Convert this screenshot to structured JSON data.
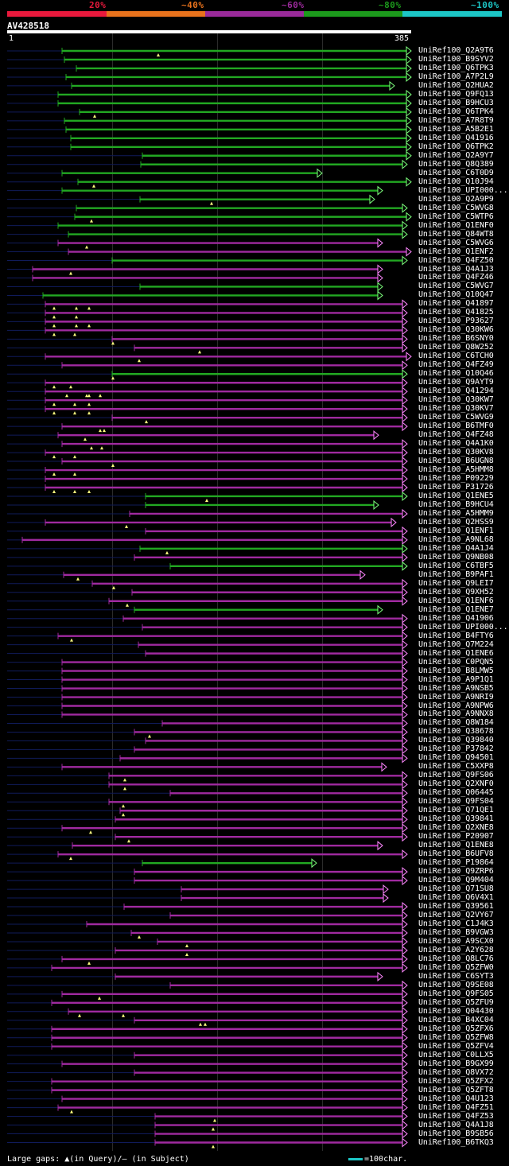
{
  "legend": {
    "labels": [
      "20%",
      "~40%",
      "~60%",
      "~80%",
      "~100%"
    ],
    "colors": [
      "#e8193c",
      "#e8721c",
      "#9a2a9a",
      "#1c9a1c",
      "#1cc6c6"
    ]
  },
  "query": {
    "name": "AV428518",
    "start": "1",
    "end": "385"
  },
  "footer": {
    "text": "Large gaps: ▲(in Query)/— (in Subject)",
    "scale": "=100char."
  },
  "colors": {
    "green": "#22a822",
    "purple": "#a02aa0",
    "navy": "#101b5a",
    "green_arrow": "#7dff7d",
    "purple_arrow": "#ff88ff"
  },
  "hits": [
    {
      "name": "UniRef100_Q2A9T6",
      "c": "g",
      "s": 78,
      "e": 517,
      "m": [
        199
      ]
    },
    {
      "name": "UniRef100_B9SYV2",
      "c": "g",
      "s": 81,
      "e": 517,
      "m": []
    },
    {
      "name": "UniRef100_Q6TPK3",
      "c": "g",
      "s": 96,
      "e": 517,
      "m": []
    },
    {
      "name": "UniRef100_A7P2L9",
      "c": "g",
      "s": 83,
      "e": 517,
      "m": []
    },
    {
      "name": "UniRef100_Q2HUA2",
      "c": "g",
      "s": 90,
      "e": 496,
      "m": []
    },
    {
      "name": "UniRef100_Q9FQ13",
      "c": "g",
      "s": 73,
      "e": 517,
      "m": []
    },
    {
      "name": "UniRef100_B9HCU3",
      "c": "g",
      "s": 73,
      "e": 517,
      "m": []
    },
    {
      "name": "UniRef100_Q6TPK4",
      "c": "g",
      "s": 100,
      "e": 517,
      "m": [
        119
      ]
    },
    {
      "name": "UniRef100_A7R8T9",
      "c": "g",
      "s": 81,
      "e": 517,
      "m": []
    },
    {
      "name": "UniRef100_A5B2E1",
      "c": "g",
      "s": 83,
      "e": 517,
      "m": []
    },
    {
      "name": "UniRef100_Q41916",
      "c": "g",
      "s": 89,
      "e": 517,
      "m": []
    },
    {
      "name": "UniRef100_Q6TPK2",
      "c": "g",
      "s": 89,
      "e": 517,
      "m": []
    },
    {
      "name": "UniRef100_Q2A9Y7",
      "c": "g",
      "s": 179,
      "e": 517,
      "m": []
    },
    {
      "name": "UniRef100_Q8Q389",
      "c": "g",
      "s": 177,
      "e": 512,
      "m": []
    },
    {
      "name": "UniRef100_C6T0D9",
      "c": "g",
      "s": 78,
      "e": 405,
      "m": []
    },
    {
      "name": "UniRef100_Q10J94",
      "c": "g",
      "s": 98,
      "e": 517,
      "m": [
        118
      ]
    },
    {
      "name": "UniRef100_UPI000...",
      "c": "g",
      "s": 78,
      "e": 481,
      "m": []
    },
    {
      "name": "UniRef100_Q2A9P9",
      "c": "g",
      "s": 176,
      "e": 471,
      "m": [
        266
      ]
    },
    {
      "name": "UniRef100_C5WVG8",
      "c": "g",
      "s": 96,
      "e": 512,
      "m": []
    },
    {
      "name": "UniRef100_C5WTP6",
      "c": "g",
      "s": 94,
      "e": 517,
      "m": [
        115
      ]
    },
    {
      "name": "UniRef100_Q1ENF0",
      "c": "g",
      "s": 73,
      "e": 512,
      "m": []
    },
    {
      "name": "UniRef100_Q84WT8",
      "c": "g",
      "s": 86,
      "e": 512,
      "m": []
    },
    {
      "name": "UniRef100_C5WVG6",
      "c": "p",
      "s": 73,
      "e": 481,
      "m": [
        109
      ]
    },
    {
      "name": "UniRef100_Q1ENF2",
      "c": "p",
      "s": 86,
      "e": 517,
      "m": []
    },
    {
      "name": "UniRef100_Q4FZ50",
      "c": "g",
      "s": 141,
      "e": 512,
      "m": []
    },
    {
      "name": "UniRef100_Q4A1J3",
      "c": "p",
      "s": 41,
      "e": 481,
      "m": [
        89
      ]
    },
    {
      "name": "UniRef100_Q4FZ46",
      "c": "p",
      "s": 41,
      "e": 481,
      "m": []
    },
    {
      "name": "UniRef100_C5WVG7",
      "c": "g",
      "s": 176,
      "e": 481,
      "m": []
    },
    {
      "name": "UniRef100_Q10Q47",
      "c": "g",
      "s": 54,
      "e": 481,
      "m": []
    },
    {
      "name": "UniRef100_Q41897",
      "c": "p",
      "s": 57,
      "e": 512,
      "m": [
        68,
        96,
        112
      ]
    },
    {
      "name": "UniRef100_Q41825",
      "c": "p",
      "s": 57,
      "e": 512,
      "m": [
        68,
        96
      ]
    },
    {
      "name": "UniRef100_P93627",
      "c": "p",
      "s": 57,
      "e": 512,
      "m": [
        68,
        96,
        112
      ]
    },
    {
      "name": "UniRef100_Q30KW6",
      "c": "p",
      "s": 57,
      "e": 512,
      "m": [
        68,
        94
      ]
    },
    {
      "name": "UniRef100_B6SNY0",
      "c": "p",
      "s": 141,
      "e": 512,
      "m": [
        142
      ]
    },
    {
      "name": "UniRef100_Q8W252",
      "c": "p",
      "s": 169,
      "e": 512,
      "m": [
        251
      ]
    },
    {
      "name": "UniRef100_C6TCH0",
      "c": "p",
      "s": 57,
      "e": 517,
      "m": [
        175
      ]
    },
    {
      "name": "UniRef100_Q4FZ49",
      "c": "p",
      "s": 78,
      "e": 512,
      "m": []
    },
    {
      "name": "UniRef100_Q10Q46",
      "c": "g",
      "s": 141,
      "e": 512,
      "m": [
        142
      ]
    },
    {
      "name": "UniRef100_Q9AYT9",
      "c": "p",
      "s": 57,
      "e": 512,
      "m": [
        68,
        89
      ]
    },
    {
      "name": "UniRef100_Q41294",
      "c": "p",
      "s": 57,
      "e": 512,
      "m": [
        84,
        109,
        112,
        126
      ]
    },
    {
      "name": "UniRef100_Q30KW7",
      "c": "p",
      "s": 57,
      "e": 512,
      "m": [
        68,
        94,
        112
      ]
    },
    {
      "name": "UniRef100_Q30KV7",
      "c": "p",
      "s": 57,
      "e": 512,
      "m": [
        68,
        94,
        112
      ]
    },
    {
      "name": "UniRef100_C5WVG9",
      "c": "p",
      "s": 141,
      "e": 512,
      "m": [
        184
      ]
    },
    {
      "name": "UniRef100_B6TMF0",
      "c": "p",
      "s": 78,
      "e": 512,
      "m": [
        126,
        131
      ]
    },
    {
      "name": "UniRef100_Q4FZ48",
      "c": "p",
      "s": 73,
      "e": 476,
      "m": [
        107
      ]
    },
    {
      "name": "UniRef100_Q4A1K0",
      "c": "p",
      "s": 78,
      "e": 512,
      "m": [
        115,
        128
      ]
    },
    {
      "name": "UniRef100_Q30KV8",
      "c": "p",
      "s": 57,
      "e": 512,
      "m": [
        68,
        94
      ]
    },
    {
      "name": "UniRef100_B6UGN8",
      "c": "p",
      "s": 78,
      "e": 512,
      "m": [
        142
      ]
    },
    {
      "name": "UniRef100_A5HMM8",
      "c": "p",
      "s": 57,
      "e": 512,
      "m": [
        68,
        94
      ]
    },
    {
      "name": "UniRef100_P09229",
      "c": "p",
      "s": 57,
      "e": 512,
      "m": []
    },
    {
      "name": "UniRef100_P31726",
      "c": "p",
      "s": 57,
      "e": 512,
      "m": [
        68,
        94,
        112
      ]
    },
    {
      "name": "UniRef100_Q1ENE5",
      "c": "g",
      "s": 183,
      "e": 512,
      "m": [
        260
      ]
    },
    {
      "name": "UniRef100_B9HCU4",
      "c": "g",
      "s": 183,
      "e": 476,
      "m": []
    },
    {
      "name": "UniRef100_A5HMM9",
      "c": "p",
      "s": 163,
      "e": 512,
      "m": []
    },
    {
      "name": "UniRef100_Q2HSS9",
      "c": "p",
      "s": 57,
      "e": 498,
      "m": [
        159
      ]
    },
    {
      "name": "UniRef100_Q1ENF1",
      "c": "p",
      "s": 183,
      "e": 512,
      "m": []
    },
    {
      "name": "UniRef100_A9NL68",
      "c": "p",
      "s": 28,
      "e": 512,
      "m": []
    },
    {
      "name": "UniRef100_Q4A1J4",
      "c": "g",
      "s": 176,
      "e": 512,
      "m": [
        210
      ]
    },
    {
      "name": "UniRef100_Q9NB08",
      "c": "p",
      "s": 169,
      "e": 512,
      "m": []
    },
    {
      "name": "UniRef100_C6TBF5",
      "c": "g",
      "s": 214,
      "e": 512,
      "m": []
    },
    {
      "name": "UniRef100_B9PAF1",
      "c": "p",
      "s": 80,
      "e": 459,
      "m": [
        98
      ]
    },
    {
      "name": "UniRef100_Q9LEI7",
      "c": "p",
      "s": 116,
      "e": 512,
      "m": [
        143
      ]
    },
    {
      "name": "UniRef100_Q9XH52",
      "c": "p",
      "s": 166,
      "e": 512,
      "m": []
    },
    {
      "name": "UniRef100_Q1ENF6",
      "c": "p",
      "s": 137,
      "e": 512,
      "m": [
        160
      ]
    },
    {
      "name": "UniRef100_Q1ENE7",
      "c": "g",
      "s": 169,
      "e": 481,
      "m": []
    },
    {
      "name": "UniRef100_Q41906",
      "c": "p",
      "s": 155,
      "e": 512,
      "m": []
    },
    {
      "name": "UniRef100_UPI000...",
      "c": "p",
      "s": 179,
      "e": 512,
      "m": []
    },
    {
      "name": "UniRef100_B4FTY6",
      "c": "p",
      "s": 73,
      "e": 512,
      "m": [
        90
      ]
    },
    {
      "name": "UniRef100_Q7M224",
      "c": "p",
      "s": 174,
      "e": 512,
      "m": []
    },
    {
      "name": "UniRef100_Q1ENE6",
      "c": "p",
      "s": 183,
      "e": 512,
      "m": []
    },
    {
      "name": "UniRef100_C0PQN5",
      "c": "p",
      "s": 78,
      "e": 512,
      "m": []
    },
    {
      "name": "UniRef100_B8LMW5",
      "c": "p",
      "s": 78,
      "e": 512,
      "m": []
    },
    {
      "name": "UniRef100_A9P1Q1",
      "c": "p",
      "s": 78,
      "e": 512,
      "m": []
    },
    {
      "name": "UniRef100_A9NSB5",
      "c": "p",
      "s": 78,
      "e": 512,
      "m": []
    },
    {
      "name": "UniRef100_A9NRI9",
      "c": "p",
      "s": 78,
      "e": 512,
      "m": []
    },
    {
      "name": "UniRef100_A9NPW6",
      "c": "p",
      "s": 78,
      "e": 512,
      "m": []
    },
    {
      "name": "UniRef100_A9NNX8",
      "c": "p",
      "s": 78,
      "e": 512,
      "m": []
    },
    {
      "name": "UniRef100_Q8W184",
      "c": "p",
      "s": 204,
      "e": 512,
      "m": []
    },
    {
      "name": "UniRef100_Q38678",
      "c": "p",
      "s": 169,
      "e": 512,
      "m": [
        188
      ]
    },
    {
      "name": "UniRef100_Q39840",
      "c": "p",
      "s": 183,
      "e": 512,
      "m": []
    },
    {
      "name": "UniRef100_P37842",
      "c": "p",
      "s": 169,
      "e": 512,
      "m": []
    },
    {
      "name": "UniRef100_Q94501",
      "c": "p",
      "s": 151,
      "e": 512,
      "m": []
    },
    {
      "name": "UniRef100_C5XXP8",
      "c": "p",
      "s": 78,
      "e": 486,
      "m": []
    },
    {
      "name": "UniRef100_Q9FS06",
      "c": "p",
      "s": 137,
      "e": 512,
      "m": [
        157
      ]
    },
    {
      "name": "UniRef100_Q2XNF0",
      "c": "p",
      "s": 137,
      "e": 512,
      "m": [
        157
      ]
    },
    {
      "name": "UniRef100_Q06445",
      "c": "p",
      "s": 214,
      "e": 512,
      "m": []
    },
    {
      "name": "UniRef100_Q9FS04",
      "c": "p",
      "s": 137,
      "e": 512,
      "m": [
        155
      ]
    },
    {
      "name": "UniRef100_Q71QE1",
      "c": "p",
      "s": 151,
      "e": 512,
      "m": [
        155
      ]
    },
    {
      "name": "UniRef100_Q39841",
      "c": "p",
      "s": 145,
      "e": 512,
      "m": []
    },
    {
      "name": "UniRef100_Q2XNE8",
      "c": "p",
      "s": 78,
      "e": 512,
      "m": [
        114
      ]
    },
    {
      "name": "UniRef100_P20907",
      "c": "p",
      "s": 145,
      "e": 512,
      "m": [
        162
      ]
    },
    {
      "name": "UniRef100_Q1ENE8",
      "c": "p",
      "s": 91,
      "e": 481,
      "m": []
    },
    {
      "name": "UniRef100_B6UFV8",
      "c": "p",
      "s": 73,
      "e": 512,
      "m": [
        89
      ]
    },
    {
      "name": "UniRef100_P19864",
      "c": "g",
      "s": 179,
      "e": 398,
      "m": []
    },
    {
      "name": "UniRef100_Q9ZRP6",
      "c": "p",
      "s": 169,
      "e": 512,
      "m": []
    },
    {
      "name": "UniRef100_Q9M404",
      "c": "p",
      "s": 169,
      "e": 512,
      "m": []
    },
    {
      "name": "UniRef100_Q71SU8",
      "c": "p",
      "s": 228,
      "e": 488,
      "m": []
    },
    {
      "name": "UniRef100_Q6V4X1",
      "c": "p",
      "s": 228,
      "e": 488,
      "m": []
    },
    {
      "name": "UniRef100_Q39561",
      "c": "p",
      "s": 156,
      "e": 512,
      "m": []
    },
    {
      "name": "UniRef100_Q2VY67",
      "c": "p",
      "s": 214,
      "e": 512,
      "m": []
    },
    {
      "name": "UniRef100_C1J4K3",
      "c": "p",
      "s": 109,
      "e": 512,
      "m": []
    },
    {
      "name": "UniRef100_B9VGW3",
      "c": "p",
      "s": 165,
      "e": 512,
      "m": [
        175
      ]
    },
    {
      "name": "UniRef100_A9SCX0",
      "c": "p",
      "s": 198,
      "e": 512,
      "m": [
        235
      ]
    },
    {
      "name": "UniRef100_A2Y628",
      "c": "p",
      "s": 145,
      "e": 512,
      "m": [
        235
      ]
    },
    {
      "name": "UniRef100_Q8LC76",
      "c": "p",
      "s": 78,
      "e": 512,
      "m": [
        112
      ]
    },
    {
      "name": "UniRef100_Q5ZFW0",
      "c": "p",
      "s": 65,
      "e": 512,
      "m": []
    },
    {
      "name": "UniRef100_C6SYT3",
      "c": "p",
      "s": 145,
      "e": 481,
      "m": []
    },
    {
      "name": "UniRef100_Q9SE08",
      "c": "p",
      "s": 214,
      "e": 512,
      "m": []
    },
    {
      "name": "UniRef100_Q9FS05",
      "c": "p",
      "s": 78,
      "e": 512,
      "m": [
        125
      ]
    },
    {
      "name": "UniRef100_Q5ZFU9",
      "c": "p",
      "s": 65,
      "e": 512,
      "m": []
    },
    {
      "name": "UniRef100_Q04430",
      "c": "p",
      "s": 86,
      "e": 512,
      "m": [
        100,
        155
      ]
    },
    {
      "name": "UniRef100_B4XC04",
      "c": "p",
      "s": 169,
      "e": 512,
      "m": [
        252,
        258
      ]
    },
    {
      "name": "UniRef100_Q5ZFX6",
      "c": "p",
      "s": 65,
      "e": 512,
      "m": []
    },
    {
      "name": "UniRef100_Q5ZFW8",
      "c": "p",
      "s": 65,
      "e": 512,
      "m": []
    },
    {
      "name": "UniRef100_Q5ZFV4",
      "c": "p",
      "s": 65,
      "e": 512,
      "m": []
    },
    {
      "name": "UniRef100_C0LLX5",
      "c": "p",
      "s": 169,
      "e": 512,
      "m": []
    },
    {
      "name": "UniRef100_B9GX99",
      "c": "p",
      "s": 78,
      "e": 512,
      "m": []
    },
    {
      "name": "UniRef100_Q8VX72",
      "c": "p",
      "s": 169,
      "e": 512,
      "m": []
    },
    {
      "name": "UniRef100_Q5ZFX2",
      "c": "p",
      "s": 65,
      "e": 512,
      "m": []
    },
    {
      "name": "UniRef100_Q5ZFT8",
      "c": "p",
      "s": 65,
      "e": 512,
      "m": []
    },
    {
      "name": "UniRef100_Q4U123",
      "c": "p",
      "s": 78,
      "e": 512,
      "m": []
    },
    {
      "name": "UniRef100_Q4FZ51",
      "c": "p",
      "s": 73,
      "e": 512,
      "m": [
        90
      ]
    },
    {
      "name": "UniRef100_Q4FZ53",
      "c": "p",
      "s": 195,
      "e": 512,
      "m": [
        270
      ]
    },
    {
      "name": "UniRef100_Q4A1J8",
      "c": "p",
      "s": 195,
      "e": 512,
      "m": [
        268
      ]
    },
    {
      "name": "UniRef100_B9SB56",
      "c": "p",
      "s": 195,
      "e": 512,
      "m": []
    },
    {
      "name": "UniRef100_B6TKQ3",
      "c": "p",
      "s": 195,
      "e": 512,
      "m": [
        268
      ]
    }
  ]
}
